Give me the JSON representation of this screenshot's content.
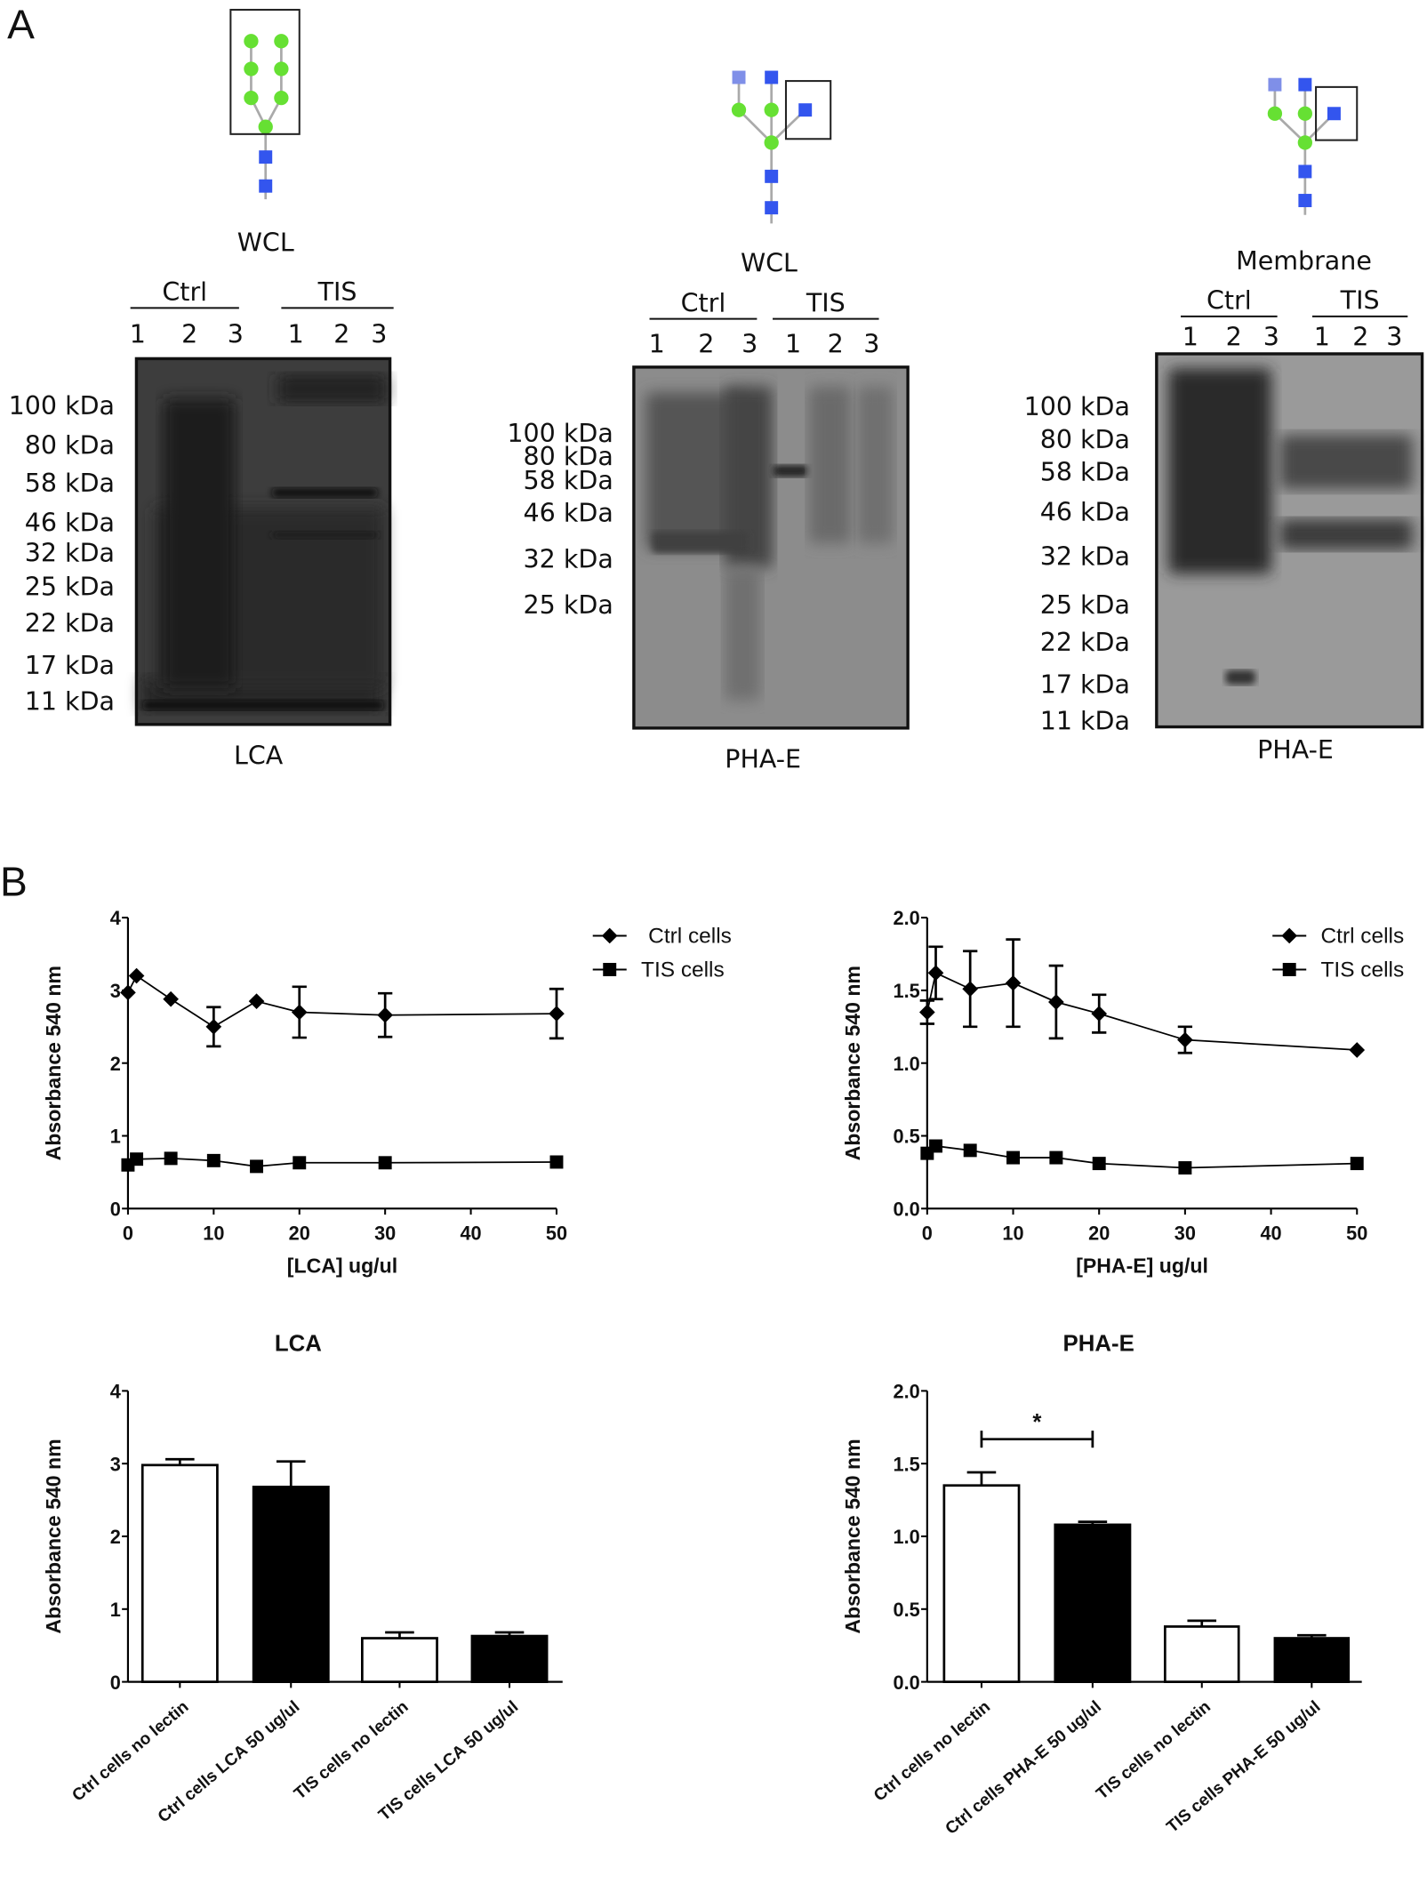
{
  "panel_labels": {
    "a": "A",
    "b": "B"
  },
  "blots": [
    {
      "sample": "WCL",
      "lectin": "LCA",
      "groups": [
        "Ctrl",
        "TIS"
      ],
      "lanes": [
        "1",
        "2",
        "3",
        "1",
        "2",
        "3"
      ],
      "markers": [
        "100 kDa",
        "80 kDa",
        "58 kDa",
        "46 kDa",
        "32 kDa",
        "25 kDa",
        "22 kDa",
        "17 kDa",
        "11 kDa"
      ]
    },
    {
      "sample": "WCL",
      "lectin": "PHA-E",
      "groups": [
        "Ctrl",
        "TIS"
      ],
      "lanes": [
        "1",
        "2",
        "3",
        "1",
        "2",
        "3"
      ],
      "markers": [
        "100 kDa",
        "80 kDa",
        "58 kDa",
        "46 kDa",
        "32 kDa",
        "25 kDa"
      ]
    },
    {
      "sample": "Membrane",
      "lectin": "PHA-E",
      "groups": [
        "Ctrl",
        "TIS"
      ],
      "lanes": [
        "1",
        "2",
        "3",
        "1",
        "2",
        "3"
      ],
      "markers": [
        "100 kDa",
        "80 kDa",
        "58 kDa",
        "46 kDa",
        "32 kDa",
        "25 kDa",
        "22 kDa",
        "17 kDa",
        "11 kDa"
      ]
    }
  ],
  "glycan_colors": {
    "mannose": "#66e033",
    "glcnac": "#3355ee",
    "glcnac_light": "#7f8fe8"
  },
  "chart_data": [
    {
      "type": "line",
      "title": "",
      "xlabel": "[LCA] ug/ul",
      "ylabel": "Absorbance 540 nm",
      "xlim": [
        0,
        50
      ],
      "ylim": [
        0,
        4
      ],
      "xticks": [
        "0",
        "10",
        "20",
        "30",
        "40",
        "50"
      ],
      "yticks": [
        "0",
        "1",
        "2",
        "3",
        "4"
      ],
      "legend": "top-right",
      "x": [
        0,
        1,
        5,
        10,
        15,
        20,
        30,
        50
      ],
      "series": [
        {
          "name": "Ctrl cells",
          "marker": "diamond",
          "values": [
            2.97,
            3.2,
            2.88,
            2.5,
            2.85,
            2.7,
            2.66,
            2.68
          ],
          "error": [
            0.07,
            0.1,
            0.02,
            0.27,
            0.03,
            0.35,
            0.3,
            0.34
          ]
        },
        {
          "name": "TIS cells",
          "marker": "square",
          "values": [
            0.6,
            0.68,
            0.69,
            0.66,
            0.58,
            0.63,
            0.63,
            0.64
          ],
          "error": [
            0.04,
            0.06,
            0.03,
            0.04,
            0.03,
            0.03,
            0.05,
            0.03
          ]
        }
      ]
    },
    {
      "type": "line",
      "title": "",
      "xlabel": "[PHA-E] ug/ul",
      "ylabel": "Absorbance 540 nm",
      "xlim": [
        0,
        50
      ],
      "ylim": [
        0,
        2
      ],
      "xticks": [
        "0",
        "10",
        "20",
        "30",
        "40",
        "50"
      ],
      "yticks": [
        "0.0",
        "0.5",
        "1.0",
        "1.5",
        "2.0"
      ],
      "legend": "top-right",
      "x": [
        0,
        1,
        5,
        10,
        15,
        20,
        30,
        50
      ],
      "series": [
        {
          "name": "Ctrl cells",
          "marker": "diamond",
          "values": [
            1.35,
            1.62,
            1.51,
            1.55,
            1.42,
            1.34,
            1.16,
            1.09
          ],
          "error": [
            0.08,
            0.18,
            0.26,
            0.3,
            0.25,
            0.13,
            0.09,
            0.01
          ]
        },
        {
          "name": "TIS cells",
          "marker": "square",
          "values": [
            0.38,
            0.43,
            0.4,
            0.35,
            0.35,
            0.31,
            0.28,
            0.31
          ],
          "error": [
            0.04,
            0.06,
            0.02,
            0.05,
            0.04,
            0.02,
            0.03,
            0.02
          ]
        }
      ]
    },
    {
      "type": "bar",
      "title": "LCA",
      "xlabel": "",
      "ylabel": "Absorbance 540 nm",
      "ylim": [
        0,
        4
      ],
      "yticks": [
        "0",
        "1",
        "2",
        "3",
        "4"
      ],
      "categories": [
        "Ctrl cells no lectin",
        "Ctrl cells LCA 50 ug/ul",
        "TIS cells no lectin",
        "TIS cells LCA 50 ug/ul"
      ],
      "values": [
        2.98,
        2.68,
        0.6,
        0.63
      ],
      "error": [
        0.08,
        0.35,
        0.08,
        0.05
      ],
      "fills": [
        "#ffffff",
        "#000000",
        "#ffffff",
        "#000000"
      ]
    },
    {
      "type": "bar",
      "title": "PHA-E",
      "xlabel": "",
      "ylabel": "Absorbance 540 nm",
      "ylim": [
        0,
        2
      ],
      "yticks": [
        "0.0",
        "0.5",
        "1.0",
        "1.5",
        "2.0"
      ],
      "categories": [
        "Ctrl cells no lectin",
        "Ctrl cells PHA-E 50 ug/ul",
        "TIS cells no lectin",
        "TIS cells PHA-E 50 ug/ul"
      ],
      "values": [
        1.35,
        1.08,
        0.38,
        0.3
      ],
      "error": [
        0.09,
        0.02,
        0.04,
        0.02
      ],
      "fills": [
        "#ffffff",
        "#000000",
        "#ffffff",
        "#000000"
      ],
      "significance": {
        "between": [
          0,
          1
        ],
        "label": "*"
      }
    }
  ]
}
